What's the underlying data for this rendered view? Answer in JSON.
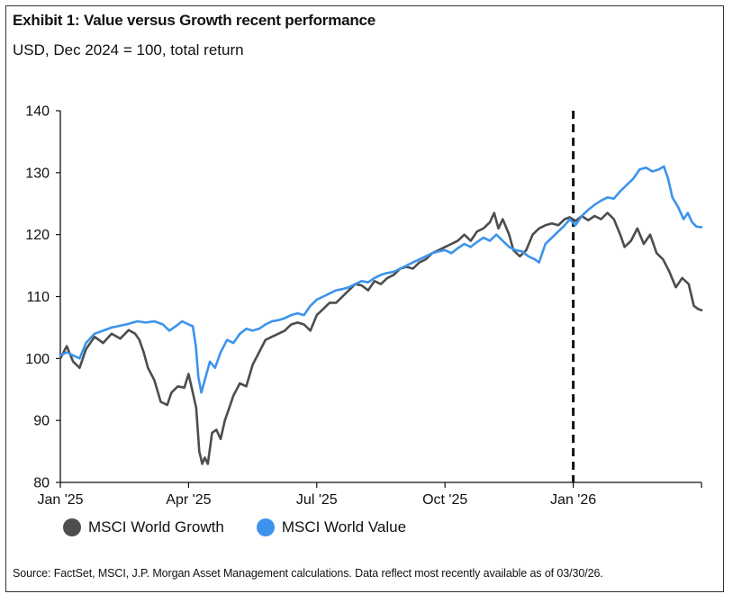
{
  "header": {
    "title": "Exhibit 1: Value versus Growth recent performance",
    "subtitle": "USD, Dec 2024 = 100, total return"
  },
  "footer": {
    "source": "Source: FactSet, MSCI, J.P. Morgan Asset Management calculations. Data reflect most recently available as of 03/30/26."
  },
  "chart_data": {
    "type": "line",
    "title": "Exhibit 1: Value versus Growth recent performance",
    "subtitle": "USD, Dec 2024 = 100, total return",
    "xlabel": "",
    "ylabel": "",
    "ylim": [
      80,
      140
    ],
    "yticks": [
      80,
      90,
      100,
      110,
      120,
      130,
      140
    ],
    "xlim": [
      0,
      15
    ],
    "x_unit": "months since Jan 1, 2025",
    "xticks": [
      {
        "x": 0,
        "label": "Jan '25"
      },
      {
        "x": 3,
        "label": "Apr '25"
      },
      {
        "x": 6,
        "label": "Jul '25"
      },
      {
        "x": 9,
        "label": "Oct '25"
      },
      {
        "x": 12,
        "label": "Jan '26"
      }
    ],
    "vertical_marker": {
      "x": 12,
      "style": "dashed"
    },
    "grid": false,
    "legend": "bottom-left",
    "series": [
      {
        "name": "MSCI World Growth",
        "color": "#4d4d4d",
        "points": [
          [
            0,
            100
          ],
          [
            0.15,
            102
          ],
          [
            0.3,
            99.5
          ],
          [
            0.45,
            98.5
          ],
          [
            0.6,
            101.5
          ],
          [
            0.8,
            103.5
          ],
          [
            1.0,
            102.5
          ],
          [
            1.2,
            104
          ],
          [
            1.4,
            103.2
          ],
          [
            1.6,
            104.6
          ],
          [
            1.75,
            104
          ],
          [
            1.85,
            103
          ],
          [
            1.95,
            101
          ],
          [
            2.05,
            98.5
          ],
          [
            2.2,
            96.5
          ],
          [
            2.35,
            93
          ],
          [
            2.5,
            92.5
          ],
          [
            2.6,
            94.5
          ],
          [
            2.75,
            95.5
          ],
          [
            2.9,
            95.3
          ],
          [
            3.0,
            97.5
          ],
          [
            3.1,
            94.5
          ],
          [
            3.18,
            92
          ],
          [
            3.25,
            85
          ],
          [
            3.32,
            83
          ],
          [
            3.38,
            84
          ],
          [
            3.45,
            83
          ],
          [
            3.55,
            88
          ],
          [
            3.65,
            88.5
          ],
          [
            3.75,
            87
          ],
          [
            3.85,
            90
          ],
          [
            3.95,
            92
          ],
          [
            4.05,
            94
          ],
          [
            4.2,
            96
          ],
          [
            4.35,
            95.5
          ],
          [
            4.5,
            99
          ],
          [
            4.65,
            101
          ],
          [
            4.8,
            103
          ],
          [
            4.95,
            103.5
          ],
          [
            5.1,
            104
          ],
          [
            5.25,
            104.5
          ],
          [
            5.4,
            105.5
          ],
          [
            5.55,
            105.8
          ],
          [
            5.7,
            105.5
          ],
          [
            5.85,
            104.5
          ],
          [
            6.0,
            107
          ],
          [
            6.15,
            108
          ],
          [
            6.3,
            109
          ],
          [
            6.45,
            109
          ],
          [
            6.6,
            110
          ],
          [
            6.75,
            111
          ],
          [
            6.9,
            112
          ],
          [
            7.05,
            111.8
          ],
          [
            7.2,
            111
          ],
          [
            7.35,
            112.5
          ],
          [
            7.5,
            112
          ],
          [
            7.65,
            113
          ],
          [
            7.8,
            113.5
          ],
          [
            7.95,
            114.5
          ],
          [
            8.1,
            114.8
          ],
          [
            8.25,
            114.5
          ],
          [
            8.4,
            115.5
          ],
          [
            8.55,
            116
          ],
          [
            8.7,
            117
          ],
          [
            8.85,
            117.5
          ],
          [
            9.0,
            118
          ],
          [
            9.15,
            118.5
          ],
          [
            9.3,
            119
          ],
          [
            9.45,
            120
          ],
          [
            9.6,
            119
          ],
          [
            9.75,
            120.5
          ],
          [
            9.9,
            121
          ],
          [
            10.05,
            122
          ],
          [
            10.15,
            123.5
          ],
          [
            10.25,
            121
          ],
          [
            10.35,
            122.5
          ],
          [
            10.5,
            120
          ],
          [
            10.6,
            117.5
          ],
          [
            10.75,
            116.5
          ],
          [
            10.9,
            117.5
          ],
          [
            11.05,
            120
          ],
          [
            11.2,
            121
          ],
          [
            11.35,
            121.5
          ],
          [
            11.5,
            121.8
          ],
          [
            11.65,
            121.5
          ],
          [
            11.8,
            122.5
          ],
          [
            11.92,
            122.8
          ],
          [
            12.05,
            122.2
          ],
          [
            12.2,
            123
          ],
          [
            12.35,
            122.3
          ],
          [
            12.5,
            123
          ],
          [
            12.65,
            122.5
          ],
          [
            12.8,
            123.5
          ],
          [
            12.95,
            122.5
          ],
          [
            13.1,
            120
          ],
          [
            13.2,
            118
          ],
          [
            13.35,
            119
          ],
          [
            13.5,
            121
          ],
          [
            13.65,
            118.5
          ],
          [
            13.8,
            120
          ],
          [
            13.95,
            117
          ],
          [
            14.1,
            116
          ],
          [
            14.25,
            114
          ],
          [
            14.4,
            111.5
          ],
          [
            14.55,
            113
          ],
          [
            14.7,
            112
          ],
          [
            14.82,
            108.5
          ],
          [
            14.92,
            108
          ],
          [
            15.0,
            107.8
          ]
        ]
      },
      {
        "name": "MSCI World Value",
        "color": "#3d93ec",
        "points": [
          [
            0,
            100.5
          ],
          [
            0.15,
            101
          ],
          [
            0.3,
            100.5
          ],
          [
            0.45,
            100
          ],
          [
            0.6,
            102.5
          ],
          [
            0.8,
            104
          ],
          [
            1.0,
            104.5
          ],
          [
            1.2,
            105
          ],
          [
            1.4,
            105.3
          ],
          [
            1.6,
            105.6
          ],
          [
            1.8,
            106
          ],
          [
            2.0,
            105.8
          ],
          [
            2.2,
            106
          ],
          [
            2.4,
            105.5
          ],
          [
            2.55,
            104.5
          ],
          [
            2.7,
            105.2
          ],
          [
            2.85,
            106
          ],
          [
            3.0,
            105.5
          ],
          [
            3.1,
            105.2
          ],
          [
            3.17,
            102
          ],
          [
            3.23,
            97
          ],
          [
            3.3,
            94.5
          ],
          [
            3.38,
            96.5
          ],
          [
            3.5,
            99.5
          ],
          [
            3.62,
            98.5
          ],
          [
            3.75,
            101
          ],
          [
            3.9,
            103
          ],
          [
            4.05,
            102.5
          ],
          [
            4.2,
            104
          ],
          [
            4.35,
            104.8
          ],
          [
            4.5,
            104.5
          ],
          [
            4.65,
            104.8
          ],
          [
            4.8,
            105.5
          ],
          [
            4.95,
            106
          ],
          [
            5.1,
            106.2
          ],
          [
            5.25,
            106.5
          ],
          [
            5.4,
            107
          ],
          [
            5.55,
            107.3
          ],
          [
            5.7,
            107
          ],
          [
            5.85,
            108.5
          ],
          [
            6.0,
            109.5
          ],
          [
            6.15,
            110
          ],
          [
            6.3,
            110.5
          ],
          [
            6.45,
            111
          ],
          [
            6.6,
            111.2
          ],
          [
            6.75,
            111.5
          ],
          [
            6.9,
            112
          ],
          [
            7.05,
            112.5
          ],
          [
            7.2,
            112.3
          ],
          [
            7.35,
            113
          ],
          [
            7.5,
            113.5
          ],
          [
            7.65,
            113.8
          ],
          [
            7.8,
            114
          ],
          [
            7.95,
            114.5
          ],
          [
            8.1,
            115
          ],
          [
            8.25,
            115.5
          ],
          [
            8.4,
            116
          ],
          [
            8.55,
            116.5
          ],
          [
            8.7,
            117
          ],
          [
            8.85,
            117.3
          ],
          [
            9.0,
            117.5
          ],
          [
            9.15,
            117
          ],
          [
            9.3,
            117.8
          ],
          [
            9.45,
            118.5
          ],
          [
            9.6,
            118
          ],
          [
            9.75,
            118.8
          ],
          [
            9.9,
            119.5
          ],
          [
            10.05,
            119
          ],
          [
            10.2,
            120
          ],
          [
            10.35,
            119
          ],
          [
            10.5,
            118
          ],
          [
            10.65,
            117.5
          ],
          [
            10.8,
            117.3
          ],
          [
            10.95,
            116.5
          ],
          [
            11.1,
            116
          ],
          [
            11.2,
            115.5
          ],
          [
            11.35,
            118.5
          ],
          [
            11.5,
            119.5
          ],
          [
            11.65,
            120.5
          ],
          [
            11.8,
            121.5
          ],
          [
            11.92,
            122.5
          ],
          [
            12.05,
            121.5
          ],
          [
            12.2,
            123
          ],
          [
            12.35,
            124
          ],
          [
            12.5,
            124.8
          ],
          [
            12.65,
            125.5
          ],
          [
            12.8,
            126
          ],
          [
            12.95,
            125.8
          ],
          [
            13.1,
            127
          ],
          [
            13.25,
            128
          ],
          [
            13.4,
            129
          ],
          [
            13.55,
            130.5
          ],
          [
            13.7,
            130.8
          ],
          [
            13.85,
            130.2
          ],
          [
            14.0,
            130.5
          ],
          [
            14.12,
            131
          ],
          [
            14.22,
            129
          ],
          [
            14.32,
            126
          ],
          [
            14.45,
            124.5
          ],
          [
            14.58,
            122.5
          ],
          [
            14.68,
            123.5
          ],
          [
            14.78,
            122
          ],
          [
            14.88,
            121.3
          ],
          [
            15.0,
            121.2
          ]
        ]
      }
    ]
  }
}
